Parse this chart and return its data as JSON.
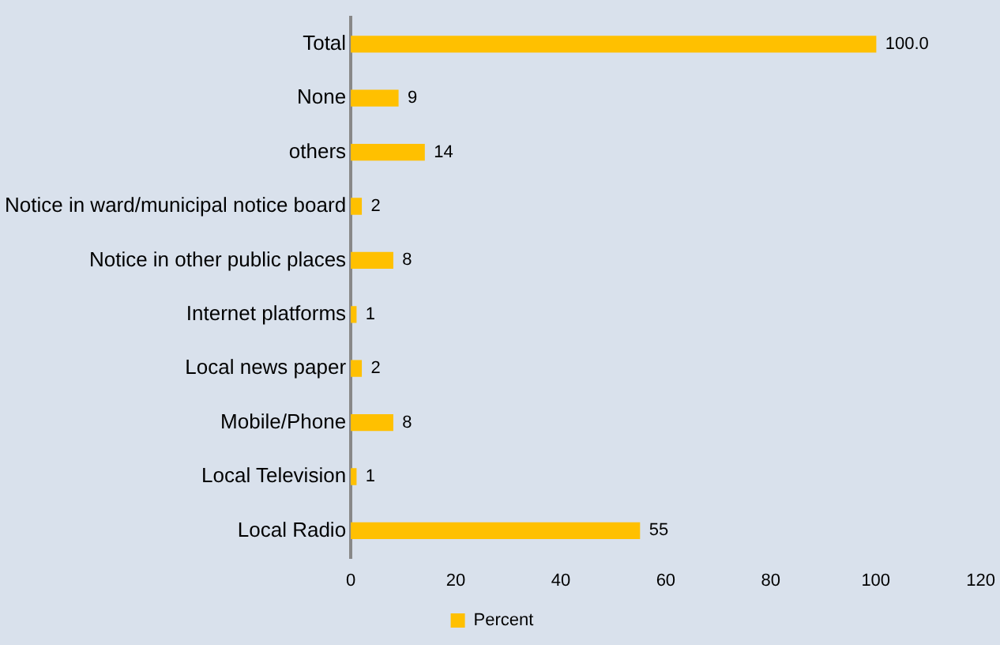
{
  "chart_data": {
    "type": "bar",
    "orientation": "horizontal",
    "categories": [
      "Total",
      "None",
      "others",
      "Notice in ward/municipal notice board",
      "Notice in other public places",
      "Internet platforms",
      "Local news paper",
      "Mobile/Phone",
      "Local Television",
      "Local Radio"
    ],
    "series": [
      {
        "name": "Percent",
        "color": "#ffc000",
        "values": [
          100,
          9,
          14,
          2,
          8,
          1,
          2,
          8,
          1,
          55
        ],
        "value_labels": [
          "100.0",
          "9",
          "14",
          "2",
          "8",
          "1",
          "2",
          "8",
          "1",
          "55"
        ]
      }
    ],
    "xlim": [
      0,
      120
    ],
    "xticks": [
      0,
      20,
      40,
      60,
      80,
      100,
      120
    ],
    "grid": false,
    "legend": "bottom"
  }
}
